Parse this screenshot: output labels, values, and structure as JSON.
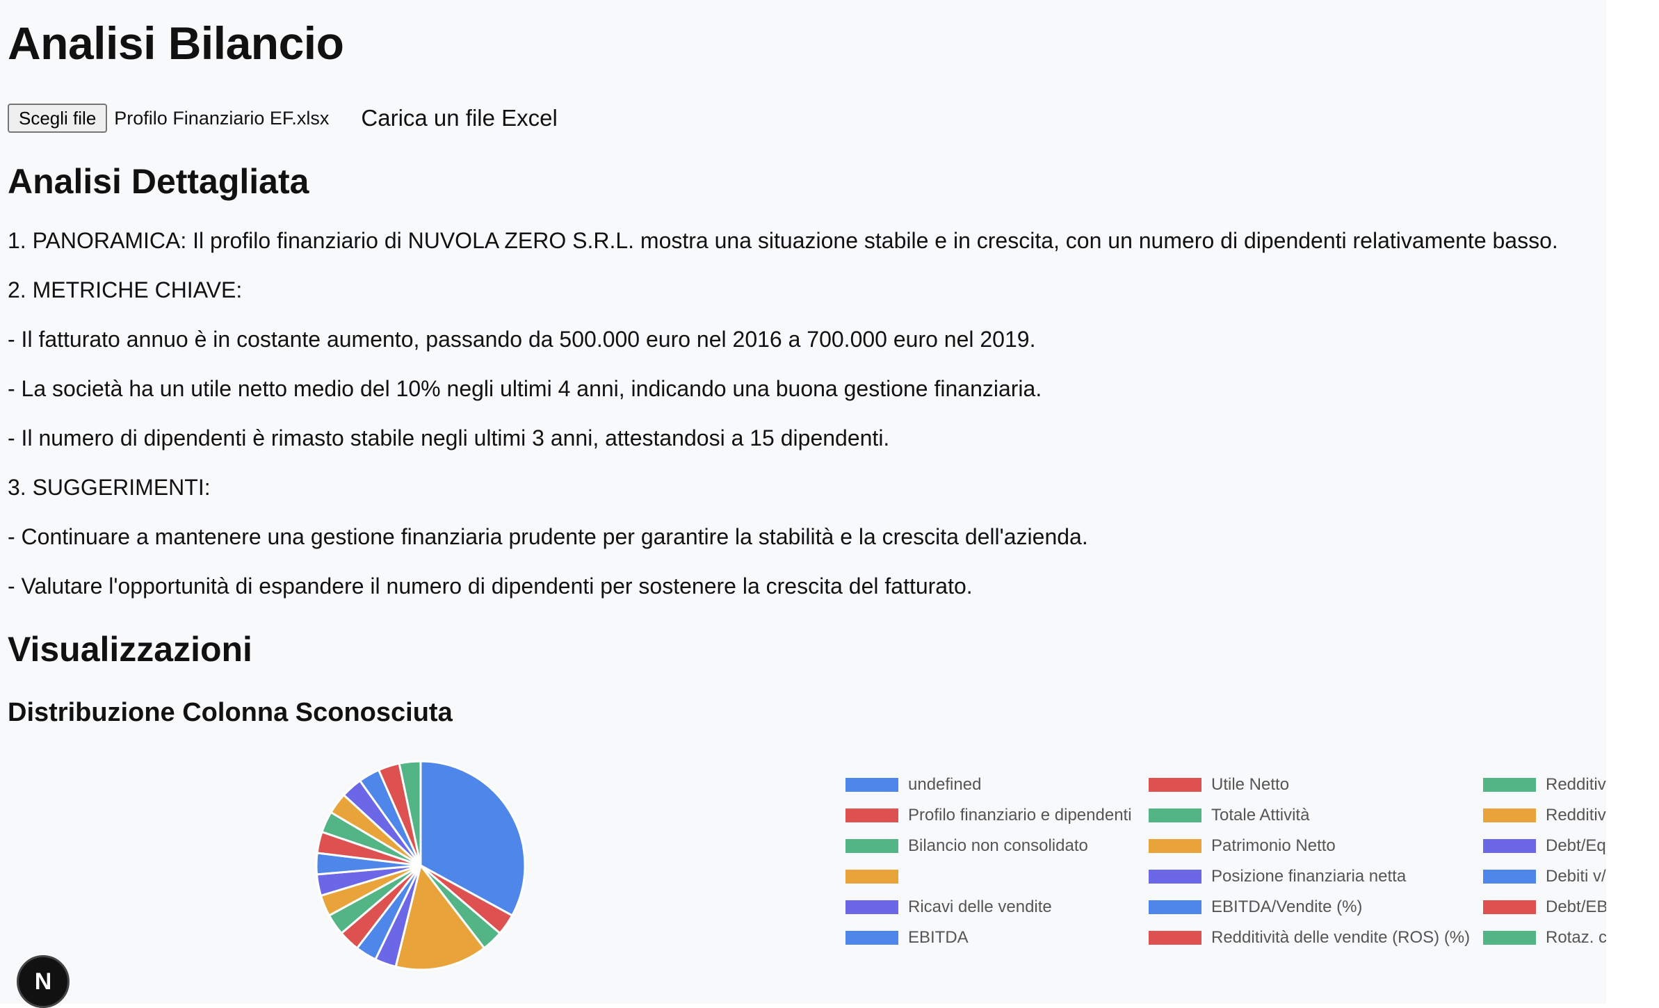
{
  "page": {
    "title": "Analisi Bilancio"
  },
  "upload": {
    "button_label": "Scegli file",
    "file_name": "Profilo Finanziario EF.xlsx",
    "hint": "Carica un file Excel"
  },
  "analysis": {
    "heading": "Analisi Dettagliata",
    "lines": [
      "1. PANORAMICA: Il profilo finanziario di NUVOLA ZERO S.R.L. mostra una situazione stabile e in crescita, con un numero di dipendenti relativamente basso.",
      "2. METRICHE CHIAVE:",
      "- Il fatturato annuo è in costante aumento, passando da 500.000 euro nel 2016 a 700.000 euro nel 2019.",
      "- La società ha un utile netto medio del 10% negli ultimi 4 anni, indicando una buona gestione finanziaria.",
      "- Il numero di dipendenti è rimasto stabile negli ultimi 3 anni, attestandosi a 15 dipendenti.",
      "3. SUGGERIMENTI:",
      "- Continuare a mantenere una gestione finanziaria prudente per garantire la stabilità e la crescita dell'azienda.",
      "- Valutare l'opportunità di espandere il numero di dipendenti per sostenere la crescita del fatturato."
    ]
  },
  "visualizations": {
    "heading": "Visualizzazioni",
    "chart_title": "Distribuzione Colonna Sconosciuta"
  },
  "colors": {
    "blue": "#4e86ea",
    "red": "#dd5151",
    "green": "#53b585",
    "orange": "#e9a33b",
    "purple": "#6b67e6"
  },
  "chart_data": {
    "type": "pie",
    "title": "Distribuzione Colonna Sconosciuta",
    "legend_position": "right",
    "categories": [
      "undefined",
      "Profilo finanziario e dipendenti",
      "Bilancio non consolidato",
      "",
      "Ricavi delle vendite",
      "EBITDA",
      "Utile Netto",
      "Totale Attività",
      "Patrimonio Netto",
      "Posizione finanziaria netta",
      "EBITDA/Vendite (%)",
      "Redditività delle vendite (ROS) (%)",
      "Redditività del",
      "Redditività del",
      "Debt/Equity ra",
      "Debiti v/banch",
      "Debt/EBITDA r",
      "Rotaz. cap. inv"
    ],
    "values": [
      30,
      3,
      3,
      13,
      3,
      3,
      3,
      3,
      3,
      3,
      3,
      3,
      3,
      3,
      3,
      3,
      3,
      3
    ],
    "slice_colors": [
      "#4e86ea",
      "#dd5151",
      "#53b585",
      "#e9a33b",
      "#6b67e6",
      "#4e86ea",
      "#dd5151",
      "#53b585",
      "#e9a33b",
      "#6b67e6",
      "#4e86ea",
      "#dd5151",
      "#53b585",
      "#e9a33b",
      "#6b67e6",
      "#4e86ea",
      "#dd5151",
      "#53b585"
    ]
  },
  "fab": {
    "label": "N",
    "icon": "nextjs-logo-icon"
  }
}
